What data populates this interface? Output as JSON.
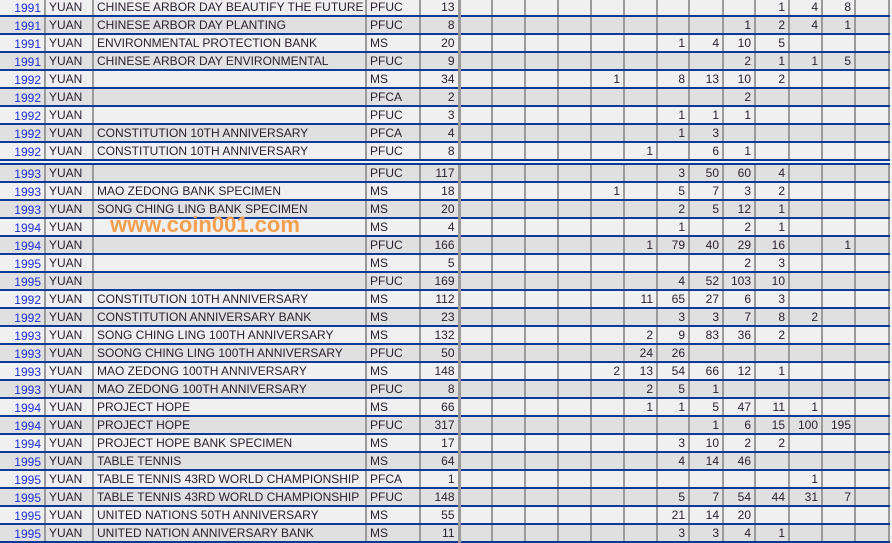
{
  "watermark": "www.coin001.com",
  "colors": {
    "row_border": "#0a3a99",
    "year_link": "#1a2ee0",
    "row_light": "#f0f0f0",
    "row_dark": "#e0e0e0",
    "watermark": "#f4a050"
  },
  "rows": [
    {
      "year": "1991",
      "unit": "YUAN",
      "name": "CHINESE ARBOR DAY BEAUTIFY THE FUTURE",
      "type": "PFUC",
      "total": "13",
      "grades": [
        "",
        "",
        "",
        "",
        "",
        "",
        "",
        "",
        "",
        "1",
        "4",
        "8",
        ""
      ]
    },
    {
      "year": "1991",
      "unit": "YUAN",
      "name": "CHINESE ARBOR DAY PLANTING",
      "type": "PFUC",
      "total": "8",
      "grades": [
        "",
        "",
        "",
        "",
        "",
        "",
        "",
        "",
        "1",
        "2",
        "4",
        "1",
        ""
      ]
    },
    {
      "year": "1991",
      "unit": "YUAN",
      "name": "ENVIRONMENTAL PROTECTION BANK",
      "type": "MS",
      "total": "20",
      "grades": [
        "",
        "",
        "",
        "",
        "",
        "",
        "1",
        "4",
        "10",
        "5",
        "",
        "",
        ""
      ]
    },
    {
      "year": "1991",
      "unit": "YUAN",
      "name": "CHINESE ARBOR DAY ENVIRONMENTAL",
      "type": "PFUC",
      "total": "9",
      "grades": [
        "",
        "",
        "",
        "",
        "",
        "",
        "",
        "",
        "2",
        "1",
        "1",
        "5",
        ""
      ]
    },
    {
      "year": "1992",
      "unit": "YUAN",
      "name": "",
      "type": "MS",
      "total": "34",
      "grades": [
        "",
        "",
        "",
        "",
        "1",
        "",
        "8",
        "13",
        "10",
        "2",
        "",
        "",
        ""
      ]
    },
    {
      "year": "1992",
      "unit": "YUAN",
      "name": "",
      "type": "PFCA",
      "total": "2",
      "grades": [
        "",
        "",
        "",
        "",
        "",
        "",
        "",
        "",
        "2",
        "",
        "",
        "",
        ""
      ]
    },
    {
      "year": "1992",
      "unit": "YUAN",
      "name": "",
      "type": "PFUC",
      "total": "3",
      "grades": [
        "",
        "",
        "",
        "",
        "",
        "",
        "1",
        "1",
        "1",
        "",
        "",
        "",
        ""
      ]
    },
    {
      "year": "1992",
      "unit": "YUAN",
      "name": "CONSTITUTION 10TH ANNIVERSARY",
      "type": "PFCA",
      "total": "4",
      "grades": [
        "",
        "",
        "",
        "",
        "",
        "",
        "1",
        "3",
        "",
        "",
        "",
        "",
        ""
      ]
    },
    {
      "year": "1992",
      "unit": "YUAN",
      "name": "CONSTITUTION 10TH ANNIVERSARY",
      "type": "PFUC",
      "total": "8",
      "grades": [
        "",
        "",
        "",
        "",
        "",
        "1",
        "",
        "6",
        "1",
        "",
        "",
        "",
        ""
      ]
    },
    {
      "year": "1993",
      "unit": "YUAN",
      "name": "",
      "type": "PFUC",
      "total": "117",
      "grades": [
        "",
        "",
        "",
        "",
        "",
        "",
        "3",
        "50",
        "60",
        "4",
        "",
        "",
        ""
      ]
    },
    {
      "year": "1993",
      "unit": "YUAN",
      "name": "MAO ZEDONG BANK SPECIMEN",
      "type": "MS",
      "total": "18",
      "grades": [
        "",
        "",
        "",
        "",
        "1",
        "",
        "5",
        "7",
        "3",
        "2",
        "",
        "",
        ""
      ]
    },
    {
      "year": "1993",
      "unit": "YUAN",
      "name": "SONG CHING LING BANK SPECIMEN",
      "type": "MS",
      "total": "20",
      "grades": [
        "",
        "",
        "",
        "",
        "",
        "",
        "2",
        "5",
        "12",
        "1",
        "",
        "",
        ""
      ]
    },
    {
      "year": "1994",
      "unit": "YUAN",
      "name": "",
      "type": "MS",
      "total": "4",
      "grades": [
        "",
        "",
        "",
        "",
        "",
        "",
        "1",
        "",
        "2",
        "1",
        "",
        "",
        ""
      ]
    },
    {
      "year": "1994",
      "unit": "YUAN",
      "name": "",
      "type": "PFUC",
      "total": "166",
      "grades": [
        "",
        "",
        "",
        "",
        "",
        "1",
        "79",
        "40",
        "29",
        "16",
        "",
        "1",
        ""
      ]
    },
    {
      "year": "1995",
      "unit": "YUAN",
      "name": "",
      "type": "MS",
      "total": "5",
      "grades": [
        "",
        "",
        "",
        "",
        "",
        "",
        "",
        "",
        "2",
        "3",
        "",
        "",
        ""
      ]
    },
    {
      "year": "1995",
      "unit": "YUAN",
      "name": "",
      "type": "PFUC",
      "total": "169",
      "grades": [
        "",
        "",
        "",
        "",
        "",
        "",
        "4",
        "52",
        "103",
        "10",
        "",
        "",
        ""
      ]
    },
    {
      "year": "1992",
      "unit": "YUAN",
      "name": "CONSTITUTION 10TH ANNIVERSARY",
      "type": "MS",
      "total": "112",
      "grades": [
        "",
        "",
        "",
        "",
        "",
        "11",
        "65",
        "27",
        "6",
        "3",
        "",
        "",
        ""
      ]
    },
    {
      "year": "1992",
      "unit": "YUAN",
      "name": "CONSTITUTION ANNIVERSARY BANK",
      "type": "MS",
      "total": "23",
      "grades": [
        "",
        "",
        "",
        "",
        "",
        "",
        "3",
        "3",
        "7",
        "8",
        "2",
        "",
        ""
      ]
    },
    {
      "year": "1993",
      "unit": "YUAN",
      "name": "SONG CHING LING 100TH ANNIVERSARY",
      "type": "MS",
      "total": "132",
      "grades": [
        "",
        "",
        "",
        "",
        "",
        "2",
        "9",
        "83",
        "36",
        "2",
        "",
        "",
        ""
      ]
    },
    {
      "year": "1993",
      "unit": "YUAN",
      "name": "SOONG CHING LING 100TH ANNIVERSARY",
      "type": "PFUC",
      "total": "50",
      "grades": [
        "",
        "",
        "",
        "",
        "",
        "24",
        "26",
        "",
        "",
        "",
        "",
        "",
        ""
      ]
    },
    {
      "year": "1993",
      "unit": "YUAN",
      "name": "MAO ZEDONG 100TH ANNIVERSARY",
      "type": "MS",
      "total": "148",
      "grades": [
        "",
        "",
        "",
        "",
        "2",
        "13",
        "54",
        "66",
        "12",
        "1",
        "",
        "",
        ""
      ]
    },
    {
      "year": "1993",
      "unit": "YUAN",
      "name": "MAO ZEDONG 100TH ANNIVERSARY",
      "type": "PFUC",
      "total": "8",
      "grades": [
        "",
        "",
        "",
        "",
        "",
        "2",
        "5",
        "1",
        "",
        "",
        "",
        "",
        ""
      ]
    },
    {
      "year": "1994",
      "unit": "YUAN",
      "name": "PROJECT HOPE",
      "type": "MS",
      "total": "66",
      "grades": [
        "",
        "",
        "",
        "",
        "",
        "1",
        "1",
        "5",
        "47",
        "11",
        "1",
        "",
        ""
      ]
    },
    {
      "year": "1994",
      "unit": "YUAN",
      "name": "PROJECT HOPE",
      "type": "PFUC",
      "total": "317",
      "grades": [
        "",
        "",
        "",
        "",
        "",
        "",
        "",
        "1",
        "6",
        "15",
        "100",
        "195",
        ""
      ]
    },
    {
      "year": "1994",
      "unit": "YUAN",
      "name": "PROJECT HOPE BANK SPECIMEN",
      "type": "MS",
      "total": "17",
      "grades": [
        "",
        "",
        "",
        "",
        "",
        "",
        "3",
        "10",
        "2",
        "2",
        "",
        "",
        ""
      ]
    },
    {
      "year": "1995",
      "unit": "YUAN",
      "name": "TABLE TENNIS",
      "type": "MS",
      "total": "64",
      "grades": [
        "",
        "",
        "",
        "",
        "",
        "",
        "4",
        "14",
        "46",
        "",
        "",
        "",
        ""
      ]
    },
    {
      "year": "1995",
      "unit": "YUAN",
      "name": "TABLE TENNIS 43RD WORLD CHAMPIONSHIP",
      "type": "PFCA",
      "total": "1",
      "grades": [
        "",
        "",
        "",
        "",
        "",
        "",
        "",
        "",
        "",
        "",
        "1",
        "",
        ""
      ]
    },
    {
      "year": "1995",
      "unit": "YUAN",
      "name": "TABLE TENNIS 43RD WORLD CHAMPIONSHIP",
      "type": "PFUC",
      "total": "148",
      "grades": [
        "",
        "",
        "",
        "",
        "",
        "",
        "5",
        "7",
        "54",
        "44",
        "31",
        "7",
        ""
      ]
    },
    {
      "year": "1995",
      "unit": "YUAN",
      "name": "UNITED NATIONS 50TH ANNIVERSARY",
      "type": "MS",
      "total": "55",
      "grades": [
        "",
        "",
        "",
        "",
        "",
        "",
        "21",
        "14",
        "20",
        "",
        "",
        "",
        ""
      ]
    },
    {
      "year": "1995",
      "unit": "YUAN",
      "name": "UNITED NATION ANNIVERSARY BANK",
      "type": "MS",
      "total": "11",
      "grades": [
        "",
        "",
        "",
        "",
        "",
        "",
        "3",
        "3",
        "4",
        "1",
        "",
        "",
        ""
      ]
    }
  ]
}
